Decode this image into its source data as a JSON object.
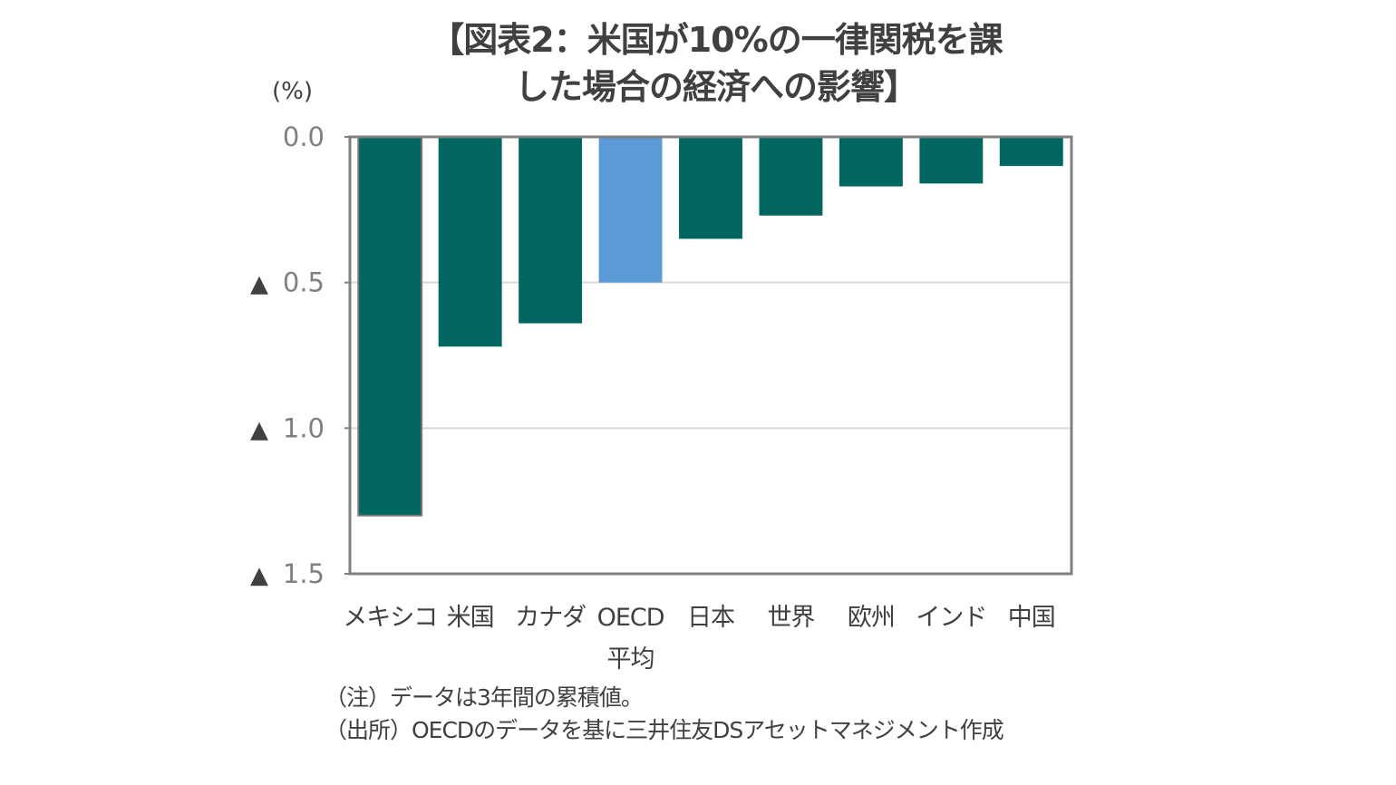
{
  "chart_data": {
    "type": "bar",
    "title_lines": [
      "【図表2：米国が10%の一律関税を課",
      "した場合の経済への影響】"
    ],
    "unit_label": "(%)",
    "categories": [
      [
        "メキシコ"
      ],
      [
        "米国"
      ],
      [
        "カナダ"
      ],
      [
        "OECD",
        "平均"
      ],
      [
        "日本"
      ],
      [
        "世界"
      ],
      [
        "欧州"
      ],
      [
        "インド"
      ],
      [
        "中国"
      ]
    ],
    "values": [
      -1.3,
      -0.72,
      -0.64,
      -0.5,
      -0.35,
      -0.27,
      -0.17,
      -0.16,
      -0.1
    ],
    "highlight_index": 3,
    "colors": {
      "bar": "#00665f",
      "highlight": "#5b9bd5",
      "axis": "#808080",
      "grid": "#d9d9d9",
      "text": "#404040",
      "tick_text": "#808080"
    },
    "ylim": [
      -1.5,
      0.0
    ],
    "yticks": [
      0.0,
      -0.5,
      -1.0,
      -1.5
    ],
    "ytick_labels": [
      "0.0",
      "▲ 0.5",
      "▲ 1.0",
      "▲ 1.5"
    ],
    "xlabel": "",
    "ylabel": "(%)",
    "grid": true,
    "legend": "none"
  },
  "notes": [
    "（注）データは3年間の累積値。",
    "（出所）OECDのデータを基に三井住友DSアセットマネジメント作成"
  ]
}
